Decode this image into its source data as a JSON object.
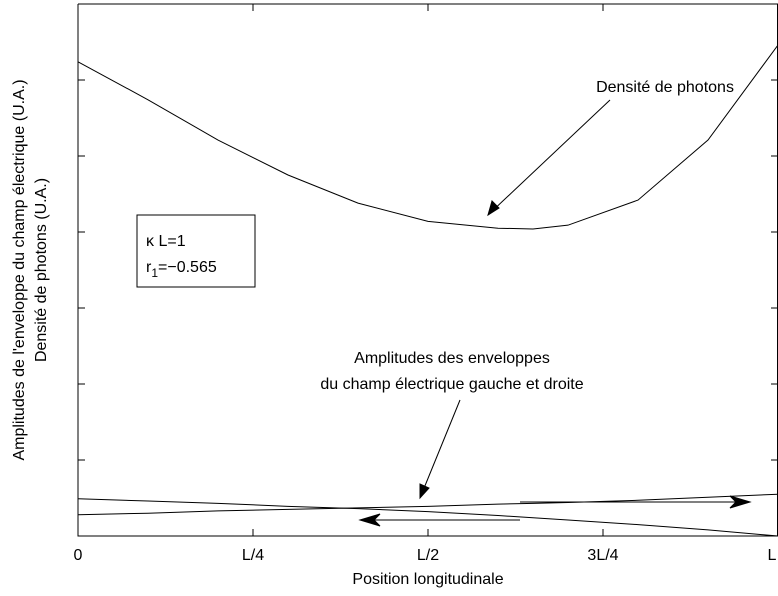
{
  "chart_data": {
    "type": "line",
    "xlabel": "Position longitudinale",
    "ylabel": [
      "Amplitudes de l'enveloppe du champ électrique (U.A.)",
      "Densité de photons (U.A.)"
    ],
    "xlim": [
      0,
      1
    ],
    "xticks": [
      0,
      {
        "value": 0.25,
        "label": "L/4"
      },
      {
        "value": 0.5,
        "label": "L/2"
      },
      {
        "value": 0.75,
        "label": "3L/4"
      },
      {
        "value": 1,
        "label": "L"
      }
    ],
    "ylim": [
      0,
      7
    ],
    "yticks": [
      0,
      1,
      2,
      3,
      4,
      5,
      6,
      7
    ],
    "x": [
      0,
      0.1,
      0.2,
      0.3,
      0.4,
      0.5,
      0.6,
      0.65,
      0.7,
      0.8,
      0.9,
      1
    ],
    "series": [
      {
        "name": "Densité de photons",
        "color": "#000000",
        "values": [
          6.24,
          5.74,
          5.21,
          4.75,
          4.38,
          4.14,
          4.05,
          4.04,
          4.09,
          4.42,
          5.21,
          6.46
        ]
      },
      {
        "name": "Enveloppe gauche",
        "color": "#000000",
        "values": [
          0.49,
          0.46,
          0.43,
          0.39,
          0.36,
          0.32,
          0.27,
          0.24,
          0.21,
          0.15,
          0.08,
          0.0
        ]
      },
      {
        "name": "Enveloppe droite",
        "color": "#000000",
        "values": [
          0.28,
          0.3,
          0.33,
          0.35,
          0.37,
          0.39,
          0.42,
          0.43,
          0.44,
          0.47,
          0.51,
          0.55
        ]
      }
    ],
    "annotations": [
      {
        "text": "Densité de photons"
      },
      {
        "text": [
          "Amplitudes des enveloppes",
          "du champ électrique gauche et droite"
        ]
      }
    ],
    "params": {
      "line1": "κ L=1",
      "line2": {
        "base": "r",
        "sub": "1",
        "rest": "=−0.565"
      }
    }
  }
}
